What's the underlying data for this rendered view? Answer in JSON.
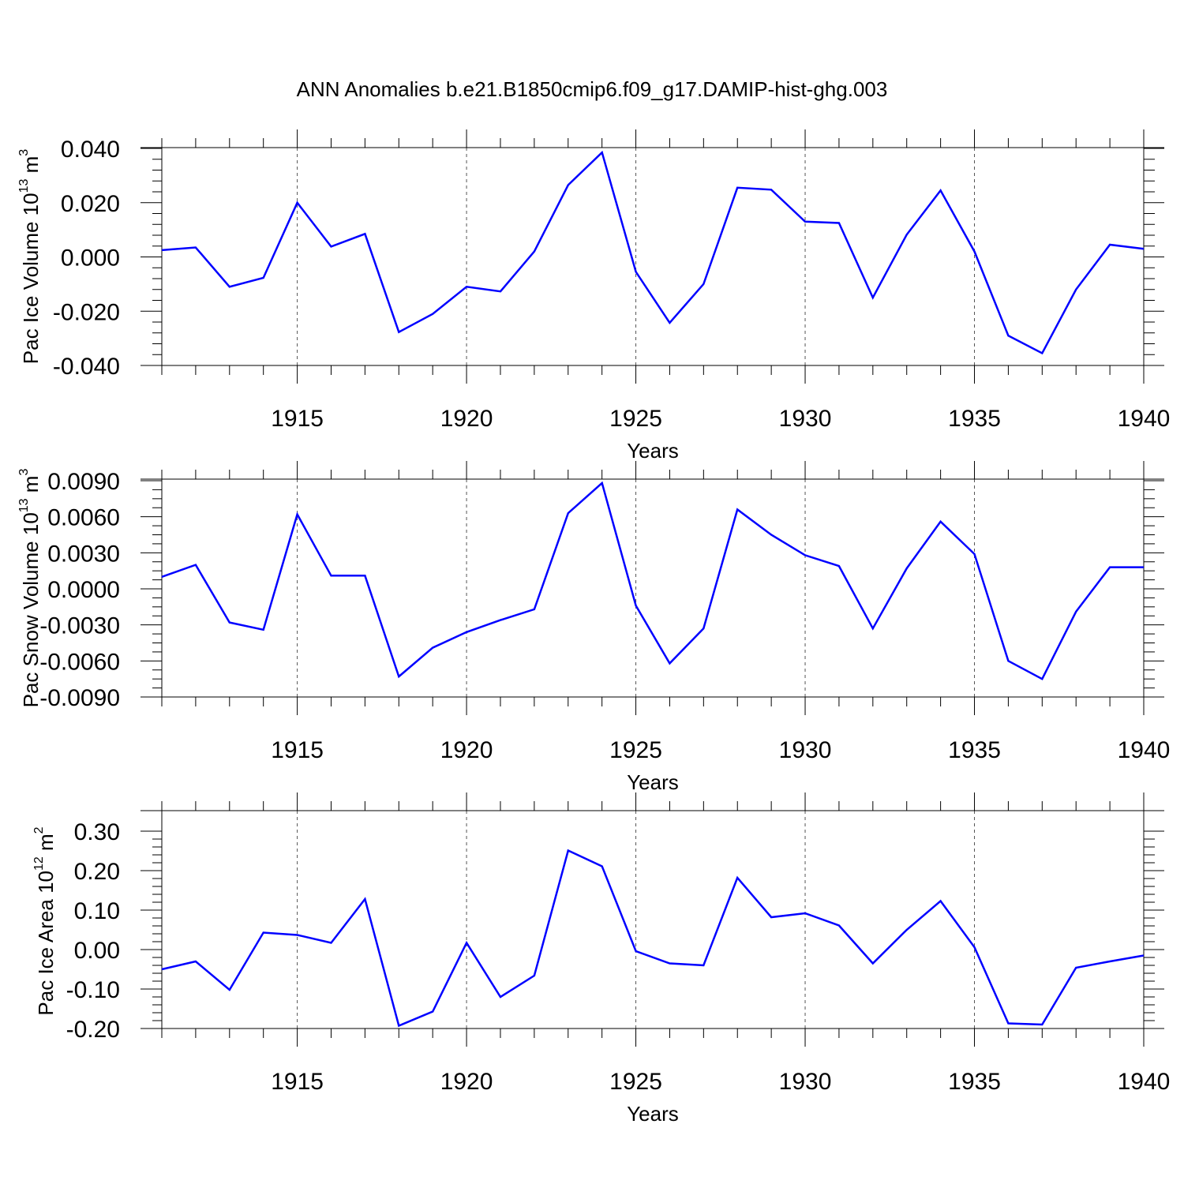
{
  "figure_title": "ANN Anomalies b.e21.B1850cmip6.f09_g17.DAMIP-hist-ghg.003",
  "series_color": "#0000ff",
  "chart_data": [
    {
      "type": "line",
      "ylabel": {
        "text": "Pac Ice Volume 10",
        "sup": "13",
        "unit": "m",
        "unit_sup": "3"
      },
      "xlabel": "Years",
      "xlim": [
        1911,
        1940
      ],
      "ylim": [
        -0.04,
        0.04
      ],
      "yticks": [
        -0.04,
        -0.02,
        0.0,
        0.02,
        0.04
      ],
      "ytick_labels": [
        "-0.040",
        "-0.020",
        "0.000",
        "0.020",
        "0.040"
      ],
      "xticks": [
        1915,
        1920,
        1925,
        1930,
        1935,
        1940
      ],
      "xtick_labels": [
        "1915",
        "1920",
        "1925",
        "1930",
        "1935",
        "1940"
      ],
      "grid": "dashed vertical at major x ticks",
      "x": [
        1911,
        1912,
        1913,
        1914,
        1915,
        1916,
        1917,
        1918,
        1919,
        1920,
        1921,
        1922,
        1923,
        1924,
        1925,
        1926,
        1927,
        1928,
        1929,
        1930,
        1931,
        1932,
        1933,
        1934,
        1935,
        1936,
        1937,
        1938,
        1939,
        1940
      ],
      "y": [
        0.0025,
        0.0035,
        -0.011,
        -0.0077,
        0.02,
        0.0038,
        0.0085,
        -0.0277,
        -0.021,
        -0.011,
        -0.0127,
        0.002,
        0.0265,
        0.0385,
        -0.0055,
        -0.0243,
        -0.01,
        0.0255,
        0.0248,
        0.013,
        0.0125,
        -0.015,
        0.0082,
        0.0245,
        0.002,
        -0.029,
        -0.0355,
        -0.012,
        0.0045,
        0.003
      ]
    },
    {
      "type": "line",
      "ylabel": {
        "text": "Pac Snow Volume 10",
        "sup": "13",
        "unit": "m",
        "unit_sup": "3"
      },
      "xlabel": "Years",
      "xlim": [
        1911,
        1940
      ],
      "ylim": [
        -0.009,
        0.009
      ],
      "yticks": [
        -0.009,
        -0.006,
        -0.003,
        0.0,
        0.003,
        0.006,
        0.009
      ],
      "ytick_labels": [
        "-0.0090",
        "-0.0060",
        "-0.0030",
        "0.0000",
        "0.0030",
        "0.0060",
        "0.0090"
      ],
      "xticks": [
        1915,
        1920,
        1925,
        1930,
        1935,
        1940
      ],
      "xtick_labels": [
        "1915",
        "1920",
        "1925",
        "1930",
        "1935",
        "1940"
      ],
      "grid": "dashed vertical at major x ticks",
      "x": [
        1911,
        1912,
        1913,
        1914,
        1915,
        1916,
        1917,
        1918,
        1919,
        1920,
        1921,
        1922,
        1923,
        1924,
        1925,
        1926,
        1927,
        1928,
        1929,
        1930,
        1931,
        1932,
        1933,
        1934,
        1935,
        1936,
        1937,
        1938,
        1939,
        1940
      ],
      "y": [
        0.001,
        0.002,
        -0.0028,
        -0.0034,
        0.0062,
        0.0011,
        0.0011,
        -0.0073,
        -0.0049,
        -0.0036,
        -0.0026,
        -0.0017,
        0.0063,
        0.0088,
        -0.0014,
        -0.0062,
        -0.0033,
        0.0066,
        0.0045,
        0.0028,
        0.0019,
        -0.0033,
        0.0017,
        0.0056,
        0.0029,
        -0.006,
        -0.0075,
        -0.0019,
        0.0018,
        0.0018
      ]
    },
    {
      "type": "line",
      "ylabel": {
        "text": "Pac Ice Area 10",
        "sup": "12",
        "unit": "m",
        "unit_sup": "2"
      },
      "xlabel": "Years",
      "xlim": [
        1911,
        1940
      ],
      "ylim": [
        -0.2,
        0.3
      ],
      "yticks": [
        -0.2,
        -0.1,
        0.0,
        0.1,
        0.2,
        0.3
      ],
      "ytick_labels": [
        "-0.20",
        "-0.10",
        "0.00",
        "0.10",
        "0.20",
        "0.30"
      ],
      "xticks": [
        1915,
        1920,
        1925,
        1930,
        1935,
        1940
      ],
      "xtick_labels": [
        "1915",
        "1920",
        "1925",
        "1930",
        "1935",
        "1940"
      ],
      "grid": "dashed vertical at major x ticks",
      "x": [
        1911,
        1912,
        1913,
        1914,
        1915,
        1916,
        1917,
        1918,
        1919,
        1920,
        1921,
        1922,
        1923,
        1924,
        1925,
        1926,
        1927,
        1928,
        1929,
        1930,
        1931,
        1932,
        1933,
        1934,
        1935,
        1936,
        1937,
        1938,
        1939,
        1940
      ],
      "y": [
        -0.05,
        -0.03,
        -0.102,
        0.043,
        0.037,
        0.017,
        0.128,
        -0.193,
        -0.157,
        0.017,
        -0.12,
        -0.066,
        0.251,
        0.211,
        -0.004,
        -0.035,
        -0.04,
        0.182,
        0.082,
        0.092,
        0.061,
        -0.035,
        0.05,
        0.123,
        0.006,
        -0.187,
        -0.19,
        -0.046,
        -0.03,
        -0.015
      ]
    }
  ]
}
